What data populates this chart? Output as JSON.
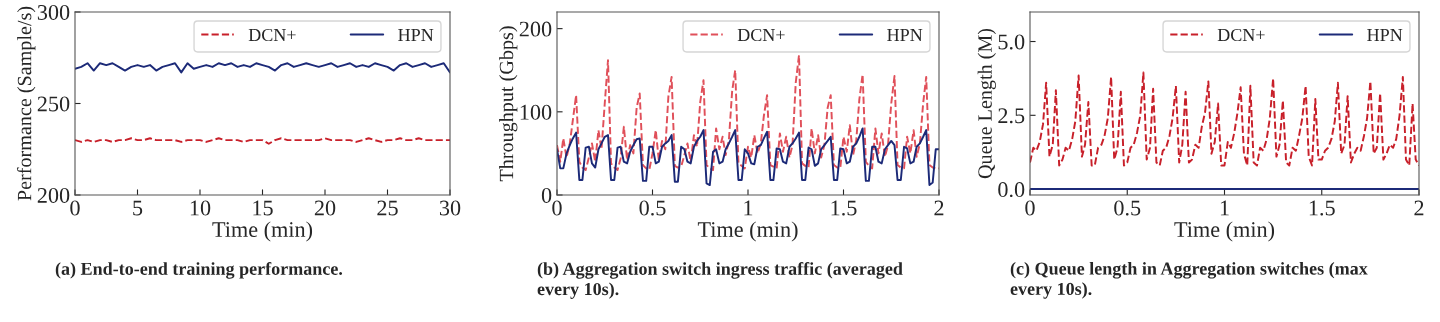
{
  "chart_data": [
    {
      "type": "line",
      "title": "(a) End-to-end training performance.",
      "xlabel": "Time (min)",
      "ylabel": "Performance (Sample/s)",
      "xlim": [
        0,
        30
      ],
      "ylim": [
        200,
        300
      ],
      "xticks": [
        0,
        5,
        10,
        15,
        20,
        25,
        30
      ],
      "yticks": [
        200,
        250,
        300
      ],
      "legend": "top right",
      "grid": false,
      "x": [
        0,
        0.5,
        1,
        1.5,
        2,
        2.5,
        3,
        3.5,
        4,
        4.5,
        5,
        5.5,
        6,
        6.5,
        7,
        7.5,
        8,
        8.5,
        9,
        9.5,
        10,
        10.5,
        11,
        11.5,
        12,
        12.5,
        13,
        13.5,
        14,
        14.5,
        15,
        15.5,
        16,
        16.5,
        17,
        17.5,
        18,
        18.5,
        19,
        19.5,
        20,
        20.5,
        21,
        21.5,
        22,
        22.5,
        23,
        23.5,
        24,
        24.5,
        25,
        25.5,
        26,
        26.5,
        27,
        27.5,
        28,
        28.5,
        29,
        29.5,
        30
      ],
      "series": [
        {
          "name": "DCN+",
          "color": "#c8202a",
          "line_style": "dashed",
          "values": [
            230,
            229,
            230,
            229,
            230,
            230,
            229,
            230,
            230,
            231,
            230,
            230,
            231,
            230,
            230,
            230,
            230,
            229,
            230,
            230,
            230,
            229,
            230,
            231,
            230,
            230,
            230,
            229,
            230,
            230,
            230,
            228,
            230,
            231,
            230,
            230,
            230,
            230,
            230,
            230,
            231,
            230,
            230,
            230,
            230,
            229,
            230,
            231,
            230,
            229,
            230,
            230,
            231,
            230,
            230,
            231,
            230,
            230,
            230,
            230,
            230
          ]
        },
        {
          "name": "HPN",
          "color": "#1c2a78",
          "line_style": "solid",
          "values": [
            269,
            270,
            272,
            268,
            272,
            271,
            272,
            270,
            268,
            270,
            271,
            270,
            271,
            268,
            270,
            271,
            272,
            267,
            272,
            269,
            270,
            271,
            270,
            272,
            271,
            272,
            270,
            271,
            270,
            272,
            271,
            270,
            268,
            271,
            272,
            270,
            271,
            272,
            271,
            270,
            271,
            272,
            270,
            271,
            272,
            270,
            271,
            270,
            272,
            271,
            270,
            268,
            271,
            272,
            270,
            271,
            272,
            270,
            271,
            272,
            267
          ]
        }
      ]
    },
    {
      "type": "line",
      "title": "(b) Aggregation switch ingress traffic (averaged every 10s).",
      "xlabel": "Time (min)",
      "ylabel": "Throughput (Gbps)",
      "xlim": [
        0,
        2
      ],
      "ylim": [
        0,
        220
      ],
      "xticks": [
        0,
        0.5,
        1,
        1.5,
        2
      ],
      "yticks": [
        0,
        100,
        200
      ],
      "legend": "top right",
      "grid": false,
      "x": [
        0,
        0.017,
        0.033,
        0.05,
        0.067,
        0.083,
        0.1,
        0.117,
        0.133,
        0.15,
        0.167,
        0.183,
        0.2,
        0.217,
        0.233,
        0.25,
        0.267,
        0.283,
        0.3,
        0.317,
        0.333,
        0.35,
        0.367,
        0.383,
        0.4,
        0.417,
        0.433,
        0.45,
        0.467,
        0.483,
        0.5,
        0.517,
        0.533,
        0.55,
        0.567,
        0.583,
        0.6,
        0.617,
        0.633,
        0.65,
        0.667,
        0.683,
        0.7,
        0.717,
        0.733,
        0.75,
        0.767,
        0.783,
        0.8,
        0.817,
        0.833,
        0.85,
        0.867,
        0.883,
        0.9,
        0.917,
        0.933,
        0.95,
        0.967,
        0.983,
        1,
        1.017,
        1.033,
        1.05,
        1.067,
        1.083,
        1.1,
        1.117,
        1.133,
        1.15,
        1.167,
        1.183,
        1.2,
        1.217,
        1.233,
        1.25,
        1.267,
        1.283,
        1.3,
        1.317,
        1.333,
        1.35,
        1.367,
        1.383,
        1.4,
        1.417,
        1.433,
        1.45,
        1.467,
        1.483,
        1.5,
        1.517,
        1.533,
        1.55,
        1.567,
        1.583,
        1.6,
        1.617,
        1.633,
        1.65,
        1.667,
        1.683,
        1.7,
        1.717,
        1.733,
        1.75,
        1.767,
        1.783,
        1.8,
        1.817,
        1.833,
        1.85,
        1.867,
        1.883,
        1.9,
        1.917,
        1.933,
        1.95,
        1.967,
        1.983,
        2
      ],
      "series": [
        {
          "name": "DCN+",
          "color": "#e0505a",
          "line_style": "dashed",
          "values": [
            60,
            40,
            68,
            45,
            62,
            90,
            120,
            40,
            33,
            30,
            45,
            62,
            40,
            78,
            55,
            110,
            162,
            38,
            33,
            30,
            44,
            82,
            42,
            60,
            50,
            105,
            122,
            36,
            32,
            30,
            50,
            78,
            42,
            65,
            55,
            118,
            142,
            35,
            33,
            34,
            48,
            62,
            40,
            72,
            58,
            112,
            138,
            36,
            32,
            30,
            80,
            55,
            70,
            48,
            66,
            125,
            150,
            38,
            35,
            32,
            58,
            45,
            72,
            50,
            62,
            95,
            120,
            36,
            34,
            32,
            74,
            52,
            70,
            45,
            60,
            135,
            168,
            38,
            35,
            33,
            80,
            50,
            72,
            45,
            60,
            105,
            120,
            36,
            33,
            32,
            70,
            52,
            84,
            48,
            66,
            115,
            145,
            40,
            35,
            32,
            80,
            50,
            74,
            46,
            60,
            110,
            143,
            36,
            33,
            32,
            70,
            50,
            78,
            46,
            62,
            110,
            142,
            36,
            33,
            32,
            32
          ]
        },
        {
          "name": "HPN",
          "color": "#1c2a78",
          "line_style": "solid",
          "values": [
            55,
            32,
            32,
            50,
            60,
            68,
            75,
            18,
            18,
            57,
            58,
            38,
            33,
            55,
            62,
            70,
            72,
            18,
            18,
            57,
            58,
            40,
            38,
            52,
            60,
            67,
            68,
            17,
            17,
            58,
            58,
            38,
            40,
            58,
            62,
            65,
            72,
            16,
            16,
            58,
            55,
            40,
            38,
            58,
            65,
            70,
            78,
            14,
            12,
            52,
            55,
            38,
            40,
            55,
            62,
            70,
            78,
            18,
            18,
            55,
            50,
            38,
            37,
            58,
            60,
            68,
            76,
            18,
            18,
            56,
            55,
            40,
            38,
            58,
            62,
            68,
            75,
            18,
            18,
            57,
            55,
            35,
            38,
            55,
            60,
            65,
            70,
            18,
            18,
            56,
            55,
            38,
            40,
            58,
            62,
            70,
            80,
            17,
            17,
            58,
            58,
            40,
            38,
            55,
            60,
            65,
            60,
            18,
            18,
            58,
            56,
            38,
            40,
            58,
            62,
            70,
            78,
            12,
            15,
            55,
            55
          ]
        }
      ]
    },
    {
      "type": "line",
      "title": "(c) Queue length in Aggregation switches (max every 10s).",
      "xlabel": "Time (min)",
      "ylabel": "Queue Length (M)",
      "xlim": [
        0,
        2
      ],
      "ylim": [
        -0.2,
        6
      ],
      "xticks": [
        0,
        0.5,
        1,
        1.5,
        2
      ],
      "yticks": [
        {
          "value": 0,
          "label": "0.0"
        },
        {
          "value": 2.5,
          "label": "2.5"
        },
        {
          "value": 5,
          "label": "5.0"
        }
      ],
      "legend": "top right",
      "grid": false,
      "x": [
        0,
        0.017,
        0.033,
        0.05,
        0.067,
        0.083,
        0.1,
        0.117,
        0.133,
        0.15,
        0.167,
        0.183,
        0.2,
        0.217,
        0.233,
        0.25,
        0.267,
        0.283,
        0.3,
        0.317,
        0.333,
        0.35,
        0.367,
        0.383,
        0.4,
        0.417,
        0.433,
        0.45,
        0.467,
        0.483,
        0.5,
        0.517,
        0.533,
        0.55,
        0.567,
        0.583,
        0.6,
        0.617,
        0.633,
        0.65,
        0.667,
        0.683,
        0.7,
        0.717,
        0.733,
        0.75,
        0.767,
        0.783,
        0.8,
        0.817,
        0.833,
        0.85,
        0.867,
        0.883,
        0.9,
        0.917,
        0.933,
        0.95,
        0.967,
        0.983,
        1,
        1.017,
        1.033,
        1.05,
        1.067,
        1.083,
        1.1,
        1.117,
        1.133,
        1.15,
        1.167,
        1.183,
        1.2,
        1.217,
        1.233,
        1.25,
        1.267,
        1.283,
        1.3,
        1.317,
        1.333,
        1.35,
        1.367,
        1.383,
        1.4,
        1.417,
        1.433,
        1.45,
        1.467,
        1.483,
        1.5,
        1.517,
        1.533,
        1.55,
        1.567,
        1.583,
        1.6,
        1.617,
        1.633,
        1.65,
        1.667,
        1.683,
        1.7,
        1.717,
        1.733,
        1.75,
        1.767,
        1.783,
        1.8,
        1.817,
        1.833,
        1.85,
        1.867,
        1.883,
        1.9,
        1.917,
        1.933,
        1.95,
        1.967,
        1.983,
        2
      ],
      "series": [
        {
          "name": "DCN+",
          "color": "#c8202a",
          "line_style": "dashed",
          "values": [
            0.9,
            1.4,
            1.3,
            1.6,
            2.2,
            3.6,
            1.1,
            1.5,
            3.35,
            0.8,
            1.0,
            1.4,
            1.3,
            1.7,
            2.3,
            3.85,
            1.1,
            1.5,
            2.95,
            0.8,
            0.8,
            1.4,
            1.5,
            1.8,
            2.4,
            3.8,
            1.0,
            1.4,
            3.3,
            0.8,
            0.9,
            1.4,
            1.5,
            1.9,
            2.5,
            3.95,
            1.0,
            1.4,
            3.4,
            0.9,
            0.8,
            1.3,
            1.4,
            1.8,
            2.4,
            3.5,
            0.9,
            1.5,
            3.3,
            0.9,
            1.0,
            1.5,
            1.4,
            2.1,
            2.6,
            3.65,
            1.2,
            1.6,
            2.9,
            0.8,
            0.8,
            1.6,
            1.4,
            1.9,
            2.6,
            3.45,
            1.2,
            0.8,
            3.5,
            0.9,
            0.8,
            1.4,
            1.3,
            1.7,
            2.4,
            3.75,
            1.1,
            1.5,
            3.0,
            0.9,
            0.8,
            1.4,
            1.3,
            1.8,
            2.4,
            3.5,
            1.1,
            0.8,
            3.05,
            1.0,
            1.0,
            1.3,
            1.4,
            1.7,
            2.3,
            3.6,
            1.2,
            1.5,
            3.15,
            0.9,
            1.2,
            1.4,
            1.3,
            1.8,
            2.4,
            3.65,
            1.2,
            1.4,
            3.25,
            1.0,
            1.2,
            1.5,
            1.4,
            1.7,
            2.5,
            3.8,
            1.0,
            0.8,
            2.9,
            1.0,
            0.8
          ]
        },
        {
          "name": "HPN",
          "color": "#1c2a78",
          "line_style": "solid",
          "x": [
            0,
            2
          ],
          "values": [
            0,
            0
          ]
        }
      ]
    }
  ]
}
